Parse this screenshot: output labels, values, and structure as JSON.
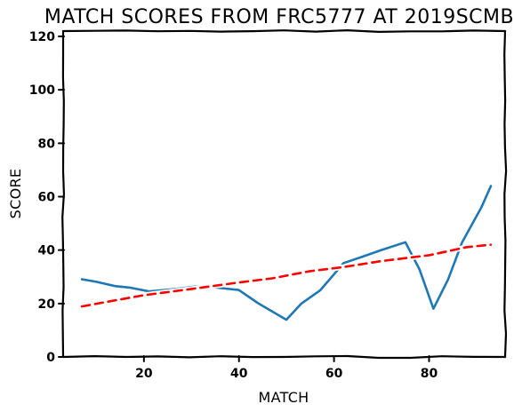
{
  "chart_data": {
    "type": "line",
    "title": "MATCH SCORES FROM FRC5777 AT 2019SCMB",
    "xlabel": "MATCH",
    "ylabel": "SCORE",
    "xlim": [
      3,
      96
    ],
    "ylim": [
      0,
      122
    ],
    "xticks": [
      20,
      40,
      60,
      80
    ],
    "yticks": [
      0,
      20,
      40,
      60,
      80,
      100,
      120
    ],
    "grid": false,
    "legend": "none",
    "series": [
      {
        "style": "solid",
        "color": "#1f77b4",
        "x": [
          7,
          10,
          14,
          17,
          21,
          27,
          31,
          35,
          40,
          44,
          50,
          53,
          57,
          59,
          62,
          66,
          70,
          75,
          78,
          81,
          84,
          87,
          91,
          93
        ],
        "y": [
          29,
          28,
          26.5,
          26,
          24.5,
          25.5,
          26.5,
          26,
          25,
          20,
          14,
          20,
          25,
          29,
          35,
          37.5,
          40,
          43,
          33,
          18,
          29,
          43,
          56,
          64
        ]
      },
      {
        "style": "dashed",
        "color": "#ff0000",
        "x": [
          7,
          12,
          20,
          30,
          40,
          47,
          55,
          62,
          70,
          80,
          88,
          93
        ],
        "y": [
          19,
          20.5,
          23,
          25.5,
          28,
          29.5,
          32,
          33.5,
          36,
          38,
          41,
          42
        ]
      }
    ]
  }
}
